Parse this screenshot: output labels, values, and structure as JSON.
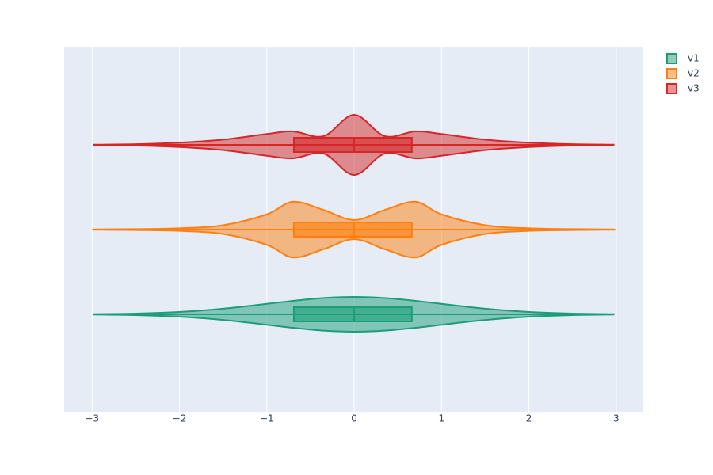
{
  "chart_data": {
    "type": "violin",
    "orientation": "horizontal",
    "xlim": [
      -3.32,
      3.31
    ],
    "xticks": [
      {
        "value": -3,
        "label": "−3"
      },
      {
        "value": -2,
        "label": "−2"
      },
      {
        "value": -1,
        "label": "−1"
      },
      0,
      1,
      2,
      3
    ],
    "grid": true,
    "legend": "top-right",
    "density_x": [
      -2.98,
      -2.5,
      -2,
      -1.5,
      -1,
      -0.7,
      -0.35,
      0,
      0.35,
      0.7,
      1,
      1.5,
      2,
      2.5,
      2.97
    ],
    "series": [
      {
        "name": "v1",
        "color": "#1b9e77",
        "min": -2.98,
        "q1": -0.69,
        "median": 0,
        "q3": 0.66,
        "max": 2.97,
        "density": [
          0.005,
          0.018,
          0.054,
          0.13,
          0.24,
          0.31,
          0.375,
          0.4,
          0.375,
          0.31,
          0.24,
          0.13,
          0.054,
          0.018,
          0.005
        ]
      },
      {
        "name": "v2",
        "color": "#ff7f0e",
        "min": -3.0,
        "q1": -0.69,
        "median": 0,
        "q3": 0.66,
        "max": 2.99,
        "density": [
          0.004,
          0.012,
          0.03,
          0.1,
          0.35,
          0.64,
          0.45,
          0.22,
          0.45,
          0.64,
          0.35,
          0.1,
          0.03,
          0.012,
          0.004
        ]
      },
      {
        "name": "v3",
        "color": "#d62728",
        "min": -2.98,
        "q1": -0.69,
        "median": 0,
        "q3": 0.66,
        "max": 2.97,
        "density": [
          0.004,
          0.015,
          0.05,
          0.12,
          0.25,
          0.31,
          0.2,
          0.69,
          0.2,
          0.31,
          0.25,
          0.12,
          0.05,
          0.015,
          0.004
        ]
      }
    ]
  }
}
